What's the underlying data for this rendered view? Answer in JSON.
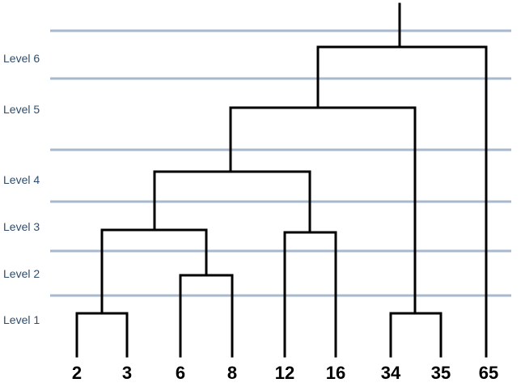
{
  "levels": [
    "Level 6",
    "Level 5",
    "Level 4",
    "Level 3",
    "Level 2",
    "Level 1"
  ],
  "leaves": [
    "2",
    "3",
    "6",
    "8",
    "12",
    "16",
    "34",
    "35",
    "65"
  ]
}
